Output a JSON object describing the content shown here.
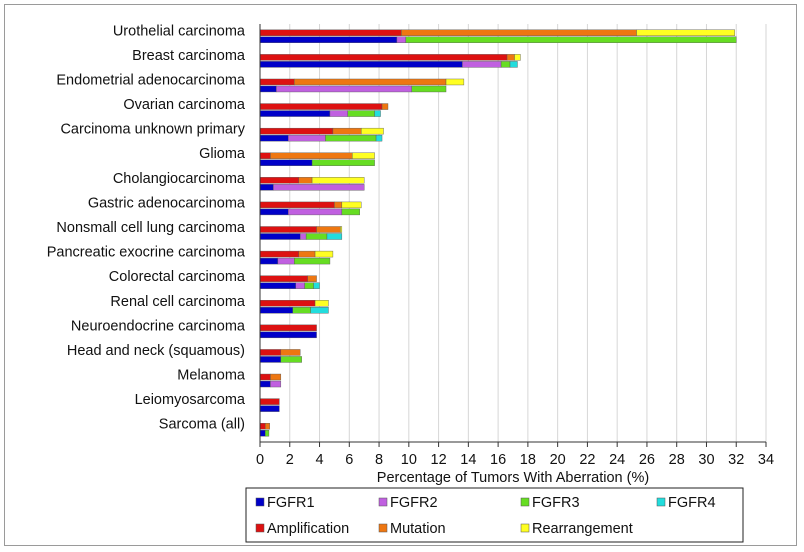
{
  "chart_data": {
    "type": "bar",
    "orientation": "horizontal",
    "stacked": true,
    "xlabel": "Percentage of Tumors With Aberration (%)",
    "xlim": [
      0,
      34
    ],
    "xticks": [
      0,
      2,
      4,
      6,
      8,
      10,
      12,
      14,
      16,
      18,
      20,
      22,
      24,
      26,
      28,
      30,
      32,
      34
    ],
    "grid": true,
    "legend_position": "bottom",
    "categories": [
      "Urothelial carcinoma",
      "Breast carcinoma",
      "Endometrial adenocarcinoma",
      "Ovarian carcinoma",
      "Carcinoma unknown primary",
      "Glioma",
      "Cholangiocarcinoma",
      "Gastric adenocarcinoma",
      "Nonsmall cell lung carcinoma",
      "Pancreatic exocrine carcinoma",
      "Colorectal carcinoma",
      "Renal cell carcinoma",
      "Neuroendocrine carcinoma",
      "Head and neck (squamous)",
      "Melanoma",
      "Leiomyosarcoma",
      "Sarcoma (all)"
    ],
    "gene_bars": {
      "description_series": [
        "FGFR1",
        "FGFR2",
        "FGFR3",
        "FGFR4"
      ],
      "values": [
        [
          9.2,
          0.6,
          22.2,
          0.0
        ],
        [
          13.6,
          2.6,
          0.6,
          0.5
        ],
        [
          1.1,
          9.1,
          2.3,
          0.0
        ],
        [
          4.7,
          1.2,
          1.8,
          0.4
        ],
        [
          1.9,
          2.5,
          3.4,
          0.4
        ],
        [
          3.5,
          0.0,
          4.2,
          0.0
        ],
        [
          0.9,
          6.1,
          0.0,
          0.0
        ],
        [
          1.9,
          3.6,
          1.2,
          0.0
        ],
        [
          2.7,
          0.4,
          1.4,
          1.0
        ],
        [
          1.2,
          1.1,
          2.4,
          0.0
        ],
        [
          2.4,
          0.6,
          0.6,
          0.4
        ],
        [
          2.2,
          0.0,
          1.2,
          1.2
        ],
        [
          3.8,
          0.0,
          0.0,
          0.0
        ],
        [
          1.4,
          0.0,
          1.4,
          0.0
        ],
        [
          0.7,
          0.7,
          0.0,
          0.0
        ],
        [
          1.3,
          0.0,
          0.0,
          0.0
        ],
        [
          0.35,
          0.0,
          0.25,
          0.0
        ]
      ]
    },
    "type_bars": {
      "description_series": [
        "Amplification",
        "Mutation",
        "Rearrangement"
      ],
      "values": [
        [
          9.5,
          15.8,
          6.6
        ],
        [
          16.6,
          0.5,
          0.4
        ],
        [
          2.3,
          10.2,
          1.2
        ],
        [
          8.2,
          0.4,
          0.0
        ],
        [
          4.9,
          1.9,
          1.5
        ],
        [
          0.7,
          5.5,
          1.5
        ],
        [
          2.6,
          0.9,
          3.5
        ],
        [
          5.0,
          0.5,
          1.3
        ],
        [
          3.8,
          1.6,
          0.1
        ],
        [
          2.6,
          1.1,
          1.2
        ],
        [
          3.2,
          0.6,
          0.0
        ],
        [
          3.7,
          0.0,
          0.9
        ],
        [
          3.8,
          0.0,
          0.0
        ],
        [
          1.4,
          1.3,
          0.0
        ],
        [
          0.7,
          0.7,
          0.0
        ],
        [
          1.3,
          0.0,
          0.0
        ],
        [
          0.35,
          0.3,
          0.0
        ]
      ]
    },
    "legend": [
      {
        "label": "FGFR1",
        "color": "#0000c8"
      },
      {
        "label": "FGFR2",
        "color": "#c060e0"
      },
      {
        "label": "FGFR3",
        "color": "#66dd22"
      },
      {
        "label": "FGFR4",
        "color": "#22dddd"
      },
      {
        "label": "Amplification",
        "color": "#dd1111"
      },
      {
        "label": "Mutation",
        "color": "#ee7711"
      },
      {
        "label": "Rearrangement",
        "color": "#ffff22"
      }
    ],
    "gene_colors": [
      "#0000c8",
      "#c060e0",
      "#66dd22",
      "#22dddd"
    ],
    "type_colors": [
      "#dd1111",
      "#ee7711",
      "#ffff22"
    ]
  }
}
